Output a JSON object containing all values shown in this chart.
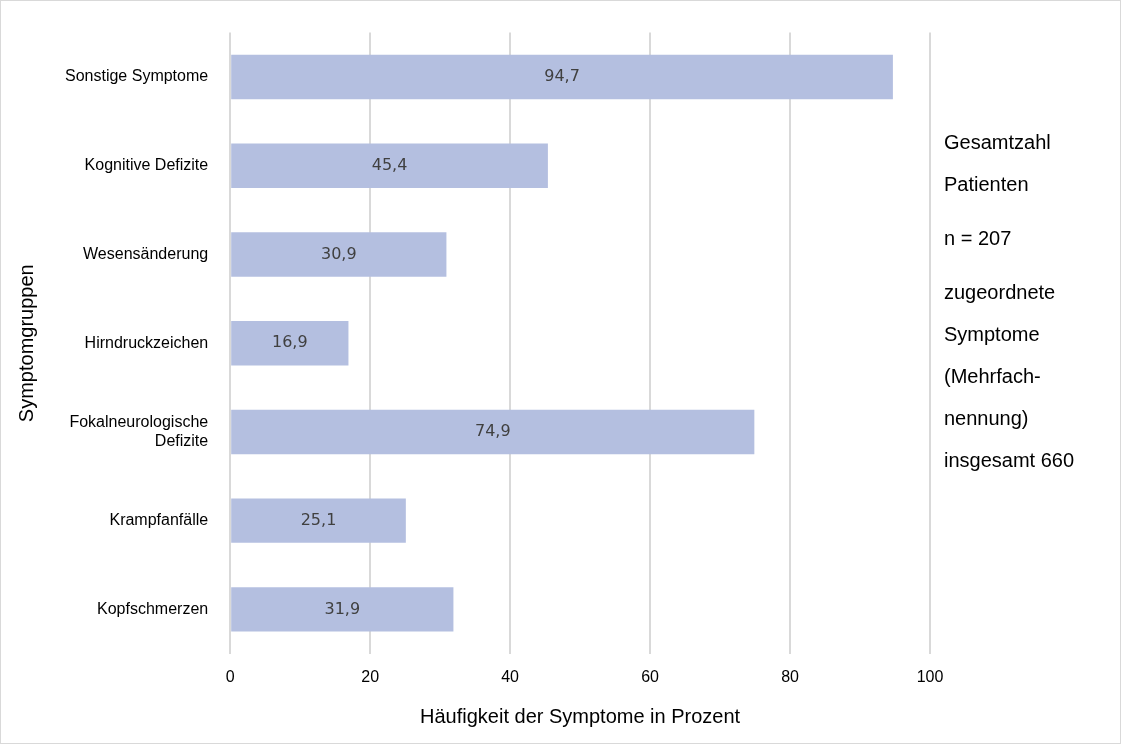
{
  "chart_data": {
    "type": "bar",
    "orientation": "horizontal",
    "categories": [
      "Sonstige Symptome",
      "Kognitive Defizite",
      "Wesensänderung",
      "Hirndruckzeichen",
      "Fokalneurologische Defizite",
      "Krampfanfälle",
      "Kopfschmerzen"
    ],
    "values": [
      94.7,
      45.4,
      30.9,
      16.9,
      74.9,
      25.1,
      31.9
    ],
    "value_labels": [
      "94,7",
      "45,4",
      "30,9",
      "16,9",
      "74,9",
      "25,1",
      "31,9"
    ],
    "color": "#b4bfe0",
    "xlim": [
      0,
      100
    ],
    "xticks": [
      0,
      20,
      40,
      60,
      80,
      100
    ],
    "xlabel": "Häufigkeit der Symptome in Prozent",
    "ylabel": "Symptomgruppen",
    "grid": "x",
    "legend": false,
    "annotations": [
      "Gesamtzahl Patienten",
      "n = 207",
      "zugeordnete Symptome (Mehrfach-nennung) insgesamt 660"
    ]
  }
}
